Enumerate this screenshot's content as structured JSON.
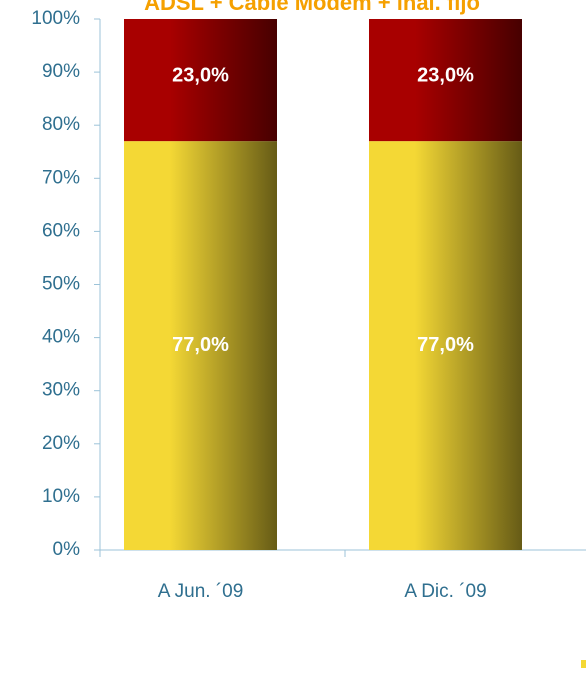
{
  "chart_data": {
    "type": "stacked_bar",
    "title": "ADSL + Cable Modem + inal. fijo",
    "categories": [
      "A Jun. ´09",
      "A Dic. ´09"
    ],
    "series": [
      {
        "color": "#f4d835",
        "values": [
          77.0,
          77.0
        ],
        "value_labels": [
          "77,0%",
          "77,0%"
        ]
      },
      {
        "color": "#a80000",
        "values": [
          23.0,
          23.0
        ],
        "value_labels": [
          "23,0%",
          "23,0%"
        ]
      }
    ],
    "ylim": [
      0,
      100
    ],
    "yticks": [
      {
        "value": 0,
        "label": "0%"
      },
      {
        "value": 10,
        "label": "10%"
      },
      {
        "value": 20,
        "label": "20%"
      },
      {
        "value": 30,
        "label": "30%"
      },
      {
        "value": 40,
        "label": "40%"
      },
      {
        "value": 50,
        "label": "50%"
      },
      {
        "value": 60,
        "label": "60%"
      },
      {
        "value": 70,
        "label": "70%"
      },
      {
        "value": 80,
        "label": "80%"
      },
      {
        "value": 90,
        "label": "90%"
      },
      {
        "value": 100,
        "label": "100%"
      }
    ],
    "grid": false
  }
}
